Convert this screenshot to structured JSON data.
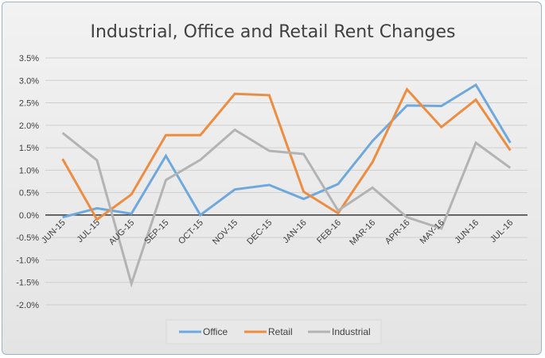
{
  "chart_data": {
    "type": "line",
    "title": "Industrial, Office and Retail Rent Changes",
    "xlabel": "",
    "ylabel": "",
    "categories": [
      "JUN-15",
      "JUL-15",
      "AUG-15",
      "SEP-15",
      "OCT-15",
      "NOV-15",
      "DEC-15",
      "JAN-16",
      "FEB-16",
      "MAR-16",
      "APR-16",
      "MAY-16",
      "JUN-16",
      "JUL-16"
    ],
    "ylim": [
      -0.02,
      0.035
    ],
    "yticks": [
      "3.5%",
      "3.0%",
      "2.5%",
      "2.0%",
      "1.5%",
      "1.0%",
      "0.5%",
      "0.0%",
      "-0.5%",
      "-1.0%",
      "-1.5%",
      "-2.0%"
    ],
    "ytick_values": [
      0.035,
      0.03,
      0.025,
      0.02,
      0.015,
      0.01,
      0.005,
      0.0,
      -0.005,
      -0.01,
      -0.015,
      -0.02
    ],
    "grid": true,
    "legend_position": "bottom",
    "series": [
      {
        "name": "Office",
        "color": "#6fa8dc",
        "values": [
          -0.0005,
          0.0015,
          0.0003,
          0.0132,
          0.0,
          0.0057,
          0.0067,
          0.0036,
          0.0069,
          0.0165,
          0.0244,
          0.0243,
          0.029,
          0.0161
        ]
      },
      {
        "name": "Retail",
        "color": "#ed8d42",
        "values": [
          0.0125,
          -0.001,
          0.0046,
          0.0178,
          0.0178,
          0.027,
          0.0267,
          0.0052,
          0.0004,
          0.0118,
          0.028,
          0.0196,
          0.0257,
          0.0144
        ]
      },
      {
        "name": "Industrial",
        "color": "#b3b3b3",
        "values": [
          0.0183,
          0.0122,
          -0.0153,
          0.0078,
          0.0123,
          0.019,
          0.0143,
          0.0136,
          0.001,
          0.0061,
          -0.0005,
          -0.003,
          0.0161,
          0.0105
        ]
      }
    ]
  }
}
